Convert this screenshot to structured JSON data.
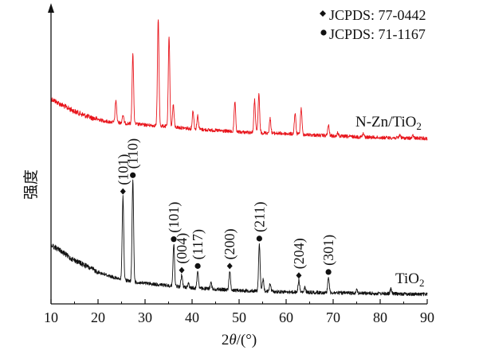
{
  "chart_data": {
    "type": "line",
    "xlabel_prefix": "2",
    "xlabel_var": "θ",
    "xlabel_unit": "/(°)",
    "ylabel": "强度",
    "xlim": [
      10,
      90
    ],
    "xticks": [
      "10",
      "20",
      "30",
      "40",
      "50",
      "60",
      "70",
      "80",
      "90"
    ],
    "legend": [
      {
        "marker": "diamond",
        "label": "JCPDS: 77-0442"
      },
      {
        "marker": "circle",
        "label": "JCPDS: 71-1167"
      }
    ],
    "series": [
      {
        "name": "N-Zn/TiO2",
        "name_main": "N-Zn/TiO",
        "name_sub": "2",
        "color": "#e8141b",
        "baseline": [
          [
            10,
            124
          ],
          [
            12,
            131
          ],
          [
            15,
            140
          ],
          [
            18,
            147
          ],
          [
            22,
            153
          ],
          [
            26,
            155
          ],
          [
            30,
            157
          ],
          [
            35,
            159
          ],
          [
            40,
            162
          ],
          [
            50,
            166
          ],
          [
            60,
            168
          ],
          [
            70,
            171
          ],
          [
            80,
            173
          ],
          [
            90,
            174
          ]
        ],
        "peaks": [
          {
            "x": 23.8,
            "h": 28
          },
          {
            "x": 25.3,
            "h": 10
          },
          {
            "x": 27.4,
            "h": 88
          },
          {
            "x": 32.8,
            "h": 135
          },
          {
            "x": 35.1,
            "h": 112
          },
          {
            "x": 36.0,
            "h": 28
          },
          {
            "x": 40.2,
            "h": 23
          },
          {
            "x": 41.2,
            "h": 17
          },
          {
            "x": 49.1,
            "h": 37
          },
          {
            "x": 53.3,
            "h": 41
          },
          {
            "x": 54.2,
            "h": 48
          },
          {
            "x": 56.6,
            "h": 18
          },
          {
            "x": 61.9,
            "h": 26
          },
          {
            "x": 63.2,
            "h": 33
          },
          {
            "x": 69.0,
            "h": 13
          },
          {
            "x": 71.0,
            "h": 4
          },
          {
            "x": 76.4,
            "h": 4
          },
          {
            "x": 84.2,
            "h": 4
          },
          {
            "x": 87.0,
            "h": 3
          }
        ]
      },
      {
        "name": "TiO2",
        "name_main": "TiO",
        "name_sub": "2",
        "color": "#111111",
        "baseline": [
          [
            10,
            308
          ],
          [
            12,
            315
          ],
          [
            14,
            324
          ],
          [
            17,
            333
          ],
          [
            20,
            342
          ],
          [
            24,
            350
          ],
          [
            28,
            355
          ],
          [
            35,
            359
          ],
          [
            40,
            362
          ],
          [
            50,
            365
          ],
          [
            60,
            367
          ],
          [
            70,
            368
          ],
          [
            80,
            369
          ],
          [
            90,
            370
          ]
        ],
        "peaks": [
          {
            "x": 25.3,
            "h": 105
          },
          {
            "x": 27.4,
            "h": 128
          },
          {
            "x": 36.1,
            "h": 53
          },
          {
            "x": 37.8,
            "h": 15
          },
          {
            "x": 39.2,
            "h": 6
          },
          {
            "x": 41.2,
            "h": 22
          },
          {
            "x": 44.0,
            "h": 8
          },
          {
            "x": 48.0,
            "h": 24
          },
          {
            "x": 54.3,
            "h": 60
          },
          {
            "x": 55.1,
            "h": 15
          },
          {
            "x": 56.6,
            "h": 10
          },
          {
            "x": 62.7,
            "h": 15
          },
          {
            "x": 64.0,
            "h": 6
          },
          {
            "x": 69.0,
            "h": 20
          },
          {
            "x": 75.0,
            "h": 5
          },
          {
            "x": 82.3,
            "h": 6
          }
        ]
      }
    ],
    "annotations": [
      {
        "x": 25.3,
        "label": "(101)",
        "marker": "diamond"
      },
      {
        "x": 27.4,
        "label": "(110)",
        "marker": "circle"
      },
      {
        "x": 36.1,
        "label": "(101)",
        "marker": "circle"
      },
      {
        "x": 37.8,
        "label": "(004)",
        "marker": "diamond"
      },
      {
        "x": 41.2,
        "label": "(117)",
        "marker": "circle"
      },
      {
        "x": 48.0,
        "label": "(200)",
        "marker": "diamond"
      },
      {
        "x": 54.3,
        "label": "(211)",
        "marker": "circle"
      },
      {
        "x": 62.7,
        "label": "(204)",
        "marker": "diamond"
      },
      {
        "x": 69.0,
        "label": "(301)",
        "marker": "circle"
      }
    ],
    "grid": false,
    "legend_position": "top-right"
  }
}
